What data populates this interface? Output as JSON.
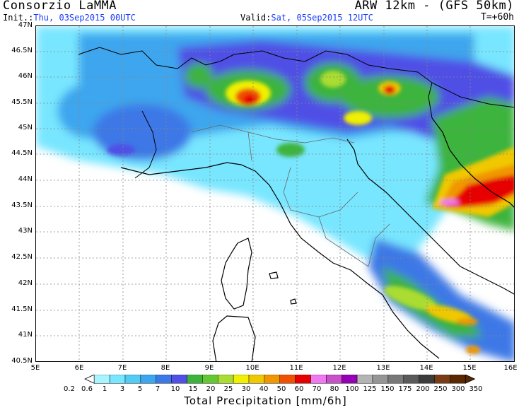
{
  "header": {
    "org": "Consorzio LaMMA",
    "model": "ARW 12km - (GFS 50km)",
    "init_label": "Init.:",
    "init_value": "Thu, 03Sep2015 00UTC",
    "valid_label": "Valid:",
    "valid_value": "Sat, 05Sep2015 12UTC",
    "lead_time": "T=+60h"
  },
  "axes": {
    "lat_ticks": [
      "47N",
      "46.5N",
      "46N",
      "45.5N",
      "45N",
      "44.5N",
      "44N",
      "43.5N",
      "43N",
      "42.5N",
      "42N",
      "41.5N",
      "41N",
      "40.5N"
    ],
    "lon_ticks": [
      "5E",
      "6E",
      "7E",
      "8E",
      "9E",
      "10E",
      "11E",
      "12E",
      "13E",
      "14E",
      "15E",
      "16E"
    ]
  },
  "legend": {
    "title": "Total Precipitation [mm/6h]",
    "levels": [
      "0.2",
      "0.6",
      "1",
      "3",
      "5",
      "7",
      "10",
      "15",
      "20",
      "25",
      "30",
      "40",
      "50",
      "60",
      "70",
      "80",
      "100",
      "125",
      "150",
      "175",
      "200",
      "250",
      "300",
      "350"
    ],
    "colors": [
      "#a8f4ff",
      "#78e6ff",
      "#50ccf5",
      "#3ca6ee",
      "#3c78e6",
      "#5050e6",
      "#3cb43c",
      "#64c832",
      "#aadc32",
      "#f0f000",
      "#f0c800",
      "#f09600",
      "#f05000",
      "#e60000",
      "#f078f0",
      "#c850c8",
      "#9600b4",
      "#b4b4b4",
      "#969696",
      "#787878",
      "#5a5a5a",
      "#3c3c3c",
      "#7a3c14",
      "#5a2800"
    ],
    "low_arrow_color": "#ffffff",
    "high_arrow_color": "#5a2800"
  },
  "map": {
    "region": "Northern/Central Italy",
    "layers": [
      "precipitation-field",
      "coastlines",
      "national-borders",
      "regional-borders",
      "lat-lon-gridlines"
    ]
  }
}
